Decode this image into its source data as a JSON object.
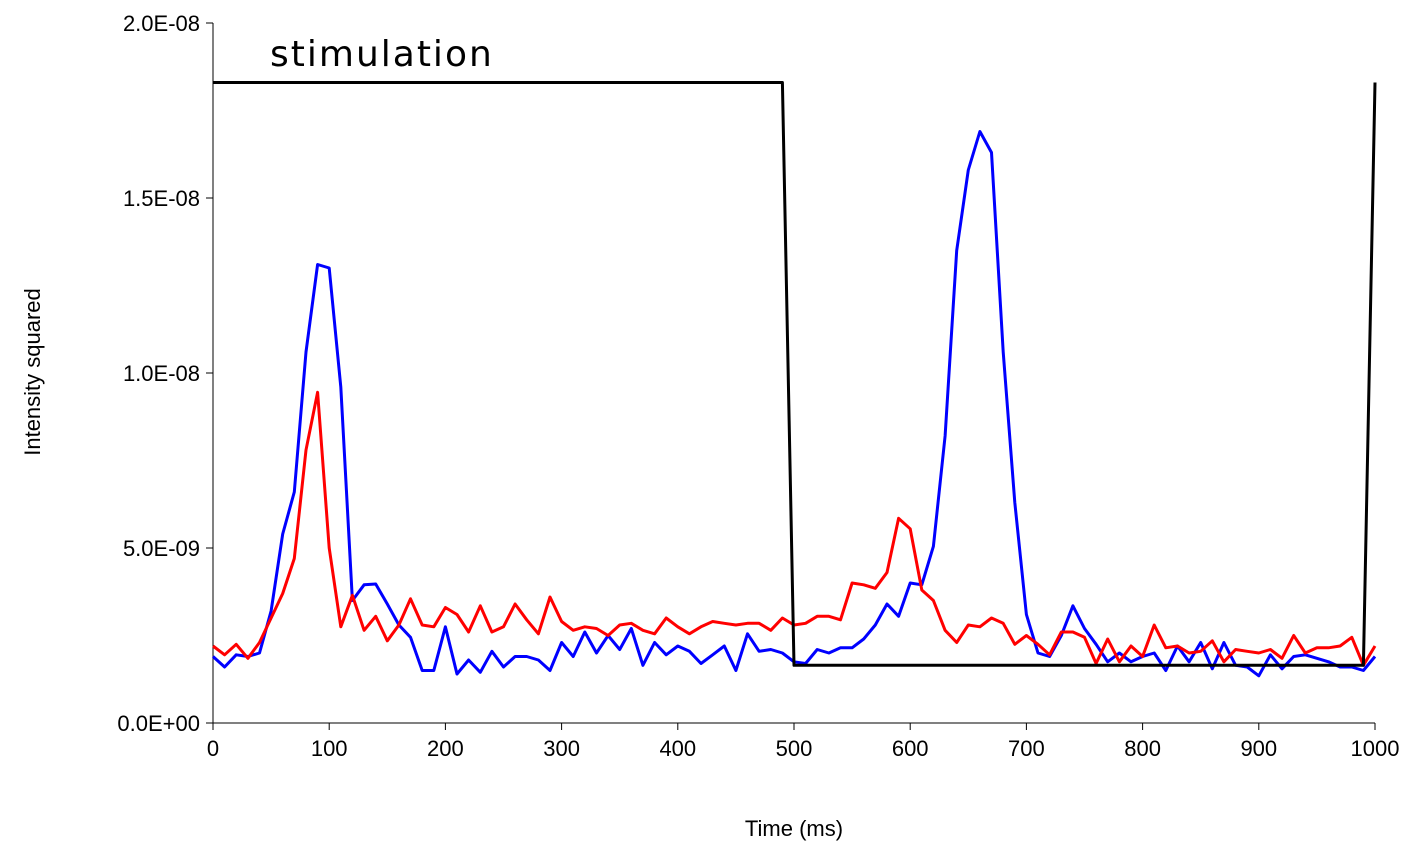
{
  "chart_data": {
    "type": "line",
    "title": "",
    "xlabel": "Time (ms)",
    "ylabel": "Intensity squared",
    "xlim": [
      0,
      1000
    ],
    "ylim": [
      0,
      2e-08
    ],
    "x_ticks": [
      0,
      100,
      200,
      300,
      400,
      500,
      600,
      700,
      800,
      900,
      1000
    ],
    "x_tick_labels": [
      "0",
      "100",
      "200",
      "300",
      "400",
      "500",
      "600",
      "700",
      "800",
      "900",
      "1000"
    ],
    "y_ticks": [
      0,
      5e-09,
      1e-08,
      1.5e-08,
      2e-08
    ],
    "y_tick_labels": [
      "0.0E+00",
      "5.0E-09",
      "1.0E-08",
      "1.5E-08",
      "2.0E-08"
    ],
    "grid": false,
    "legend": "none",
    "annotations": [
      {
        "text": "stimulation"
      }
    ],
    "x": [
      0,
      10,
      20,
      30,
      40,
      50,
      60,
      70,
      80,
      90,
      100,
      110,
      120,
      130,
      140,
      150,
      160,
      170,
      180,
      190,
      200,
      210,
      220,
      230,
      240,
      250,
      260,
      270,
      280,
      290,
      300,
      310,
      320,
      330,
      340,
      350,
      360,
      370,
      380,
      390,
      400,
      410,
      420,
      430,
      440,
      450,
      460,
      470,
      480,
      490,
      500,
      510,
      520,
      530,
      540,
      550,
      560,
      570,
      580,
      590,
      600,
      610,
      620,
      630,
      640,
      650,
      660,
      670,
      680,
      690,
      700,
      710,
      720,
      730,
      740,
      750,
      760,
      770,
      780,
      790,
      800,
      810,
      820,
      830,
      840,
      850,
      860,
      870,
      880,
      890,
      900,
      910,
      920,
      930,
      940,
      950,
      960,
      970,
      980,
      990,
      1000
    ],
    "series": [
      {
        "color": "#0000ff",
        "values": [
          1.9e-09,
          1.6e-09,
          1.95e-09,
          1.9e-09,
          2e-09,
          3.2e-09,
          5.4e-09,
          6.6e-09,
          1.06e-08,
          1.31e-08,
          1.3e-08,
          9.6e-09,
          3.5e-09,
          3.95e-09,
          3.97e-09,
          3.4e-09,
          2.8e-09,
          2.45e-09,
          1.5e-09,
          1.5e-09,
          2.75e-09,
          1.4e-09,
          1.8e-09,
          1.45e-09,
          2.05e-09,
          1.6e-09,
          1.9e-09,
          1.9e-09,
          1.8e-09,
          1.5e-09,
          2.3e-09,
          1.9e-09,
          2.6e-09,
          2e-09,
          2.5e-09,
          2.1e-09,
          2.7e-09,
          1.65e-09,
          2.3e-09,
          1.95e-09,
          2.2e-09,
          2.05e-09,
          1.7e-09,
          1.95e-09,
          2.2e-09,
          1.5e-09,
          2.55e-09,
          2.05e-09,
          2.1e-09,
          2e-09,
          1.75e-09,
          1.7e-09,
          2.1e-09,
          2e-09,
          2.15e-09,
          2.15e-09,
          2.4e-09,
          2.8e-09,
          3.4e-09,
          3.05e-09,
          4e-09,
          3.95e-09,
          5.05e-09,
          8.2e-09,
          1.35e-08,
          1.58e-08,
          1.69e-08,
          1.63e-08,
          1.06e-08,
          6.3e-09,
          3.1e-09,
          2e-09,
          1.9e-09,
          2.5e-09,
          3.35e-09,
          2.7e-09,
          2.25e-09,
          1.75e-09,
          2e-09,
          1.75e-09,
          1.9e-09,
          2e-09,
          1.5e-09,
          2.2e-09,
          1.75e-09,
          2.3e-09,
          1.55e-09,
          2.3e-09,
          1.65e-09,
          1.6e-09,
          1.35e-09,
          1.95e-09,
          1.55e-09,
          1.9e-09,
          1.95e-09,
          1.85e-09,
          1.75e-09,
          1.6e-09,
          1.6e-09,
          1.5e-09,
          1.9e-09
        ]
      },
      {
        "color": "#ff0000",
        "values": [
          2.2e-09,
          1.95e-09,
          2.25e-09,
          1.85e-09,
          2.3e-09,
          3e-09,
          3.7e-09,
          4.7e-09,
          7.8e-09,
          9.45e-09,
          5e-09,
          2.75e-09,
          3.65e-09,
          2.65e-09,
          3.05e-09,
          2.35e-09,
          2.8e-09,
          3.55e-09,
          2.8e-09,
          2.75e-09,
          3.3e-09,
          3.1e-09,
          2.6e-09,
          3.35e-09,
          2.6e-09,
          2.75e-09,
          3.4e-09,
          2.95e-09,
          2.55e-09,
          3.6e-09,
          2.9e-09,
          2.65e-09,
          2.75e-09,
          2.7e-09,
          2.5e-09,
          2.8e-09,
          2.85e-09,
          2.65e-09,
          2.55e-09,
          3e-09,
          2.75e-09,
          2.55e-09,
          2.75e-09,
          2.9e-09,
          2.85e-09,
          2.8e-09,
          2.85e-09,
          2.85e-09,
          2.65e-09,
          3e-09,
          2.8e-09,
          2.85e-09,
          3.05e-09,
          3.05e-09,
          2.95e-09,
          4e-09,
          3.95e-09,
          3.85e-09,
          4.3e-09,
          5.85e-09,
          5.55e-09,
          3.8e-09,
          3.5e-09,
          2.65e-09,
          2.3e-09,
          2.8e-09,
          2.75e-09,
          3e-09,
          2.85e-09,
          2.25e-09,
          2.5e-09,
          2.25e-09,
          1.95e-09,
          2.6e-09,
          2.6e-09,
          2.45e-09,
          1.7e-09,
          2.4e-09,
          1.75e-09,
          2.2e-09,
          1.9e-09,
          2.8e-09,
          2.15e-09,
          2.2e-09,
          2e-09,
          2.05e-09,
          2.35e-09,
          1.75e-09,
          2.1e-09,
          2.05e-09,
          2e-09,
          2.1e-09,
          1.85e-09,
          2.5e-09,
          2e-09,
          2.15e-09,
          2.15e-09,
          2.2e-09,
          2.45e-09,
          1.65e-09,
          2.2e-09
        ]
      },
      {
        "color": "#000000",
        "x": [
          0,
          490,
          500,
          990,
          1000
        ],
        "values": [
          1.83e-08,
          1.83e-08,
          1.65e-09,
          1.65e-09,
          1.83e-08
        ]
      }
    ]
  }
}
